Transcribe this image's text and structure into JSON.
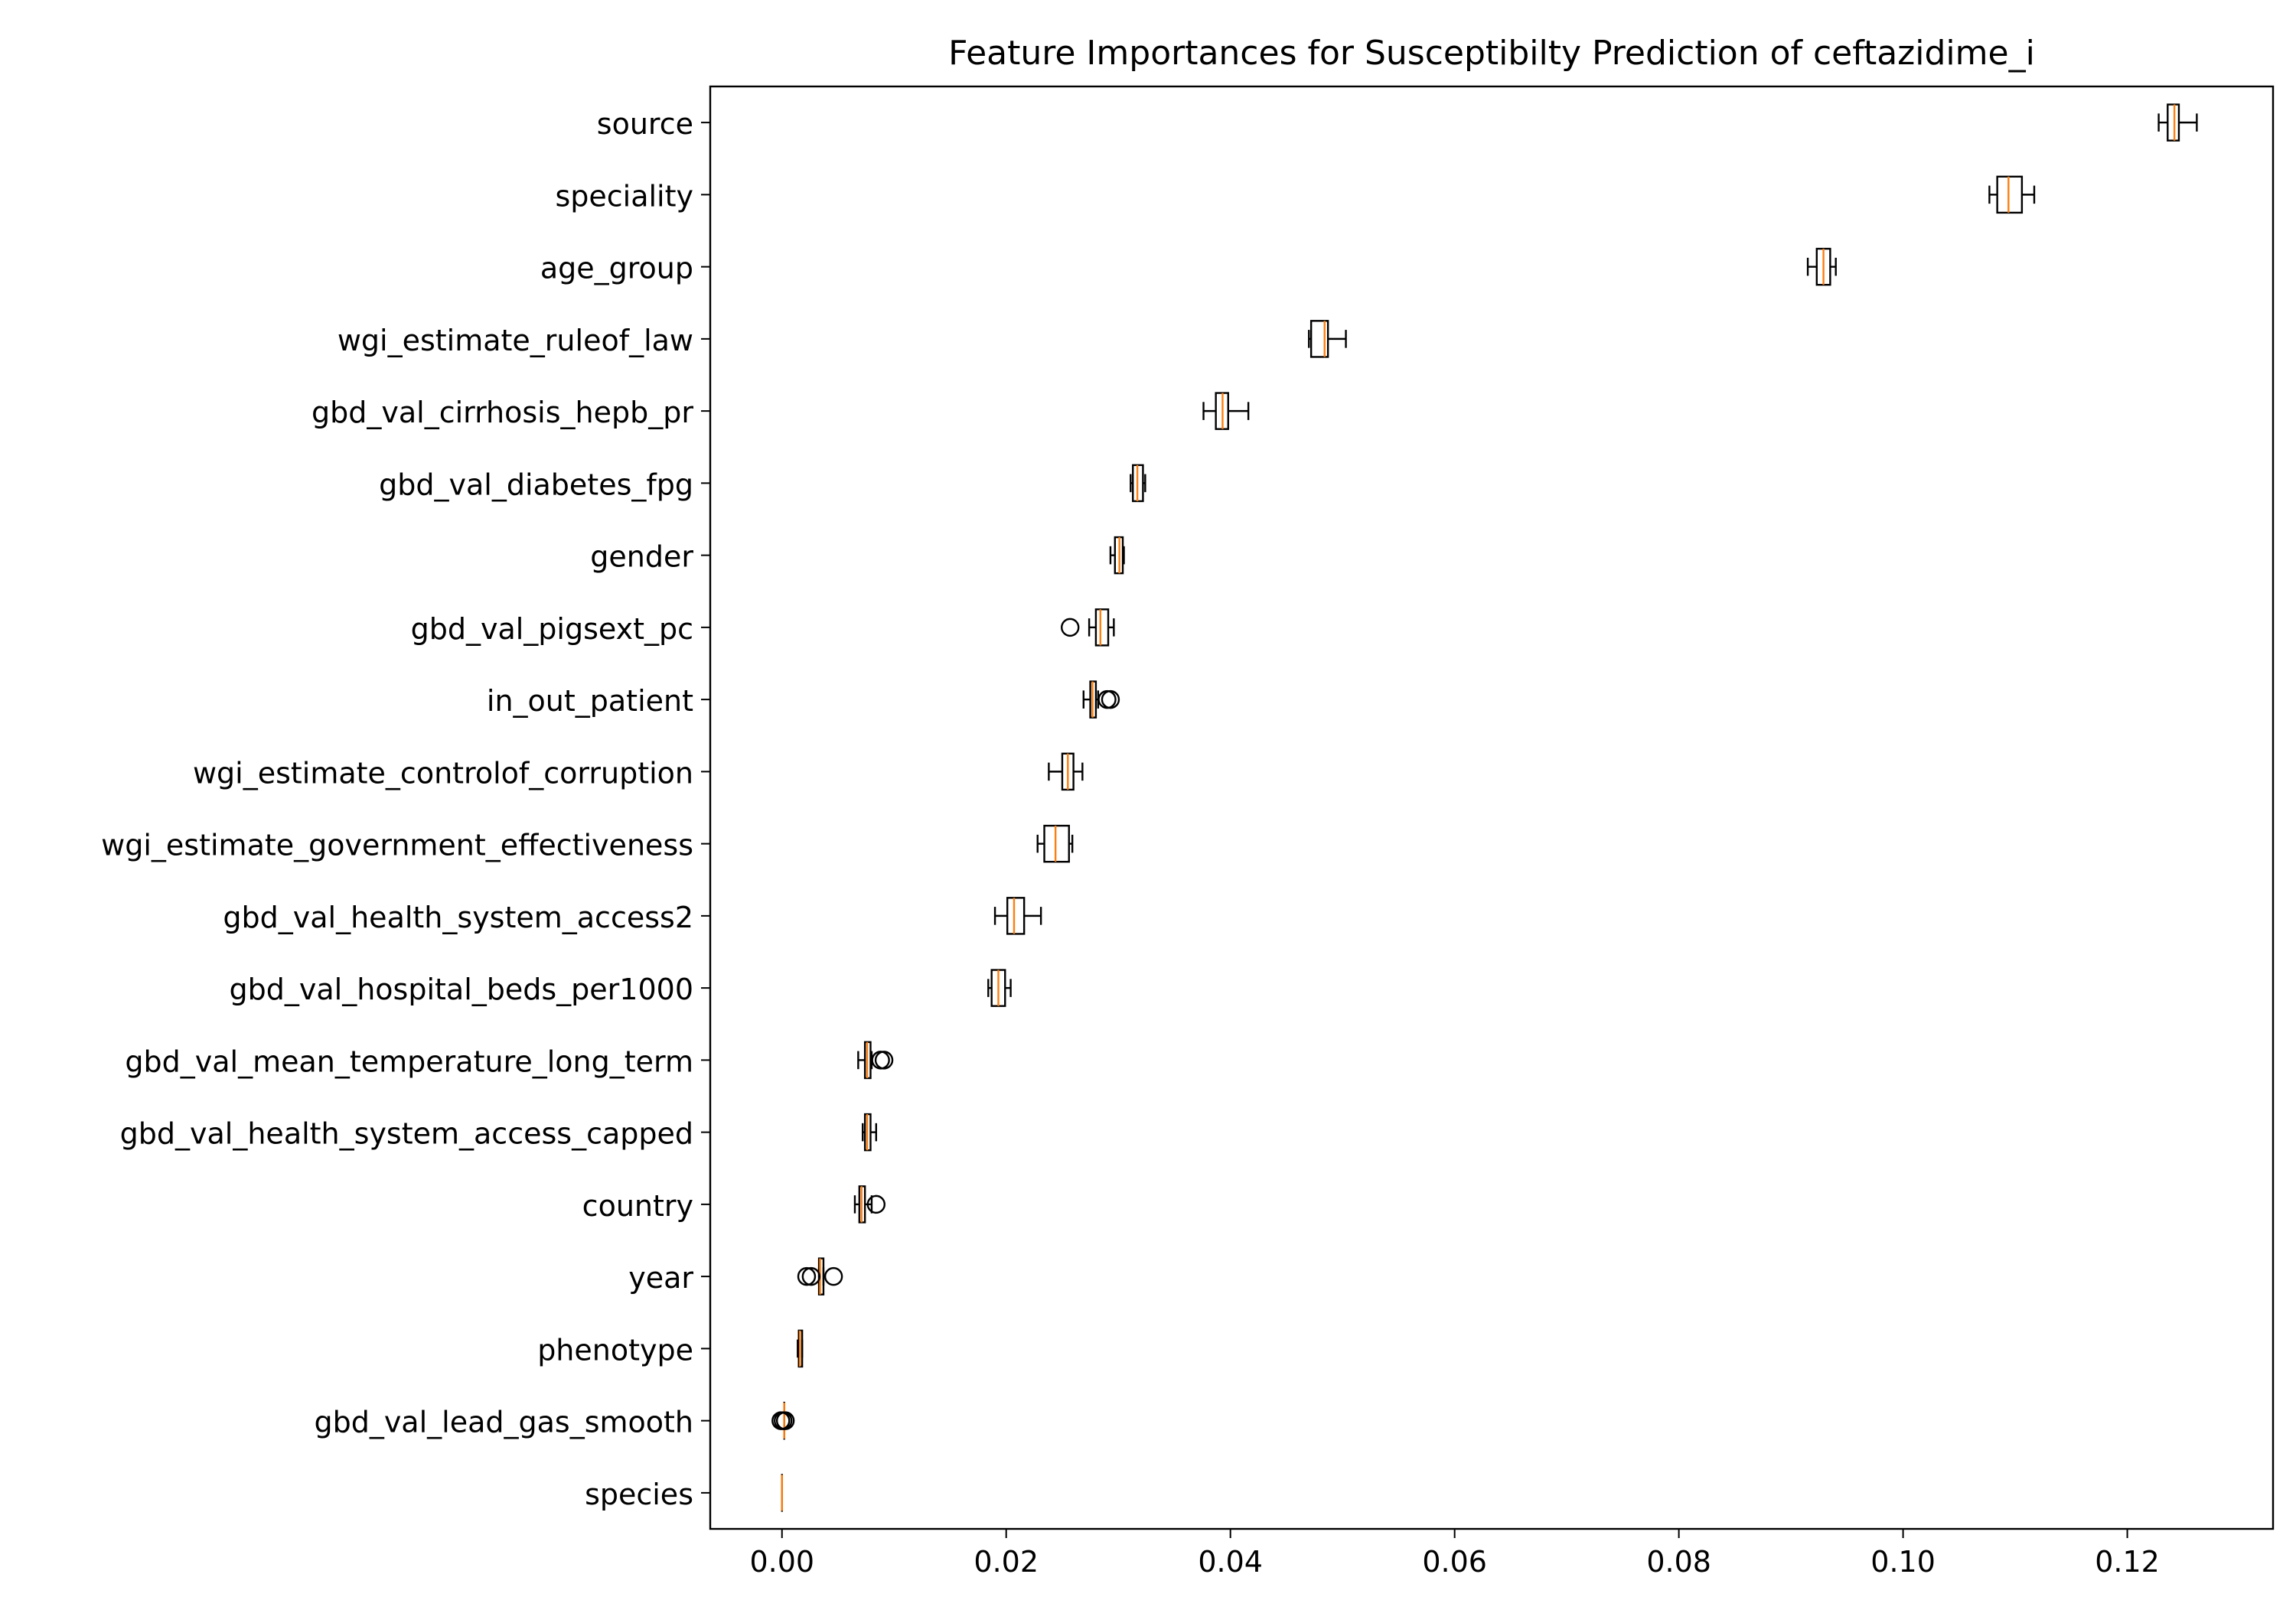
{
  "chart_data": {
    "type": "boxplot",
    "orientation": "horizontal",
    "title": "Feature Importances for Susceptibilty Prediction of ceftazidime_i",
    "xlabel": "",
    "ylabel": "",
    "xlim": [
      -0.0064,
      0.133
    ],
    "xticks": [
      {
        "value": 0.0,
        "label": "0.00"
      },
      {
        "value": 0.02,
        "label": "0.02"
      },
      {
        "value": 0.04,
        "label": "0.04"
      },
      {
        "value": 0.06,
        "label": "0.06"
      },
      {
        "value": 0.08,
        "label": "0.08"
      },
      {
        "value": 0.1,
        "label": "0.10"
      },
      {
        "value": 0.12,
        "label": "0.12"
      }
    ],
    "grid": false,
    "colors": {
      "box": "#000000",
      "median": "#ff7f0e",
      "flier": "#000000"
    },
    "features": [
      {
        "label": "source",
        "whislo": 0.1228,
        "q1": 0.1236,
        "med": 0.1242,
        "q3": 0.1246,
        "whishi": 0.1262,
        "fliers": []
      },
      {
        "label": "speciality",
        "whislo": 0.1077,
        "q1": 0.1084,
        "med": 0.1094,
        "q3": 0.1106,
        "whishi": 0.1117,
        "fliers": []
      },
      {
        "label": "age_group",
        "whislo": 0.0915,
        "q1": 0.0923,
        "med": 0.0929,
        "q3": 0.0935,
        "whishi": 0.094,
        "fliers": []
      },
      {
        "label": "wgi_estimate_ruleof_law",
        "whislo": 0.047,
        "q1": 0.0472,
        "med": 0.0484,
        "q3": 0.0487,
        "whishi": 0.0503,
        "fliers": []
      },
      {
        "label": "gbd_val_cirrhosis_hepb_pr",
        "whislo": 0.0376,
        "q1": 0.0387,
        "med": 0.0393,
        "q3": 0.0398,
        "whishi": 0.0416,
        "fliers": []
      },
      {
        "label": "gbd_val_diabetes_fpg",
        "whislo": 0.0311,
        "q1": 0.0313,
        "med": 0.0317,
        "q3": 0.0322,
        "whishi": 0.0324,
        "fliers": []
      },
      {
        "label": "gender",
        "whislo": 0.0293,
        "q1": 0.0297,
        "med": 0.0301,
        "q3": 0.0304,
        "whishi": 0.0305,
        "fliers": []
      },
      {
        "label": "gbd_val_pigsext_pc",
        "whislo": 0.0274,
        "q1": 0.028,
        "med": 0.0284,
        "q3": 0.0291,
        "whishi": 0.0296,
        "fliers": [
          0.0257
        ]
      },
      {
        "label": "in_out_patient",
        "whislo": 0.0269,
        "q1": 0.0275,
        "med": 0.0277,
        "q3": 0.028,
        "whishi": 0.0282,
        "fliers": [
          0.029,
          0.0293
        ]
      },
      {
        "label": "wgi_estimate_controlof_corruption",
        "whislo": 0.0238,
        "q1": 0.025,
        "med": 0.0255,
        "q3": 0.026,
        "whishi": 0.0268,
        "fliers": []
      },
      {
        "label": "wgi_estimate_government_effectiveness",
        "whislo": 0.0228,
        "q1": 0.0234,
        "med": 0.0244,
        "q3": 0.0256,
        "whishi": 0.0259,
        "fliers": []
      },
      {
        "label": "gbd_val_health_system_access2",
        "whislo": 0.019,
        "q1": 0.0201,
        "med": 0.0207,
        "q3": 0.0216,
        "whishi": 0.0231,
        "fliers": []
      },
      {
        "label": "gbd_val_hospital_beds_per1000",
        "whislo": 0.0184,
        "q1": 0.0187,
        "med": 0.0193,
        "q3": 0.0199,
        "whishi": 0.0204,
        "fliers": []
      },
      {
        "label": "gbd_val_mean_temperature_long_term",
        "whislo": 0.0068,
        "q1": 0.0074,
        "med": 0.0076,
        "q3": 0.0079,
        "whishi": 0.008,
        "fliers": [
          0.0088,
          0.0091
        ]
      },
      {
        "label": "gbd_val_health_system_access_capped",
        "whislo": 0.0072,
        "q1": 0.0074,
        "med": 0.0076,
        "q3": 0.0079,
        "whishi": 0.0084,
        "fliers": []
      },
      {
        "label": "country",
        "whislo": 0.0065,
        "q1": 0.0069,
        "med": 0.0071,
        "q3": 0.0074,
        "whishi": 0.008,
        "fliers": [
          0.0084
        ]
      },
      {
        "label": "year",
        "whislo": 0.0033,
        "q1": 0.0033,
        "med": 0.0034,
        "q3": 0.0037,
        "whishi": 0.0037,
        "fliers": [
          0.0022,
          0.0026,
          0.0046
        ]
      },
      {
        "label": "phenotype",
        "whislo": 0.0014,
        "q1": 0.0015,
        "med": 0.0016,
        "q3": 0.0018,
        "whishi": 0.0018,
        "fliers": []
      },
      {
        "label": "gbd_val_lead_gas_smooth",
        "whislo": 0.0002,
        "q1": 0.0002,
        "med": 0.0002,
        "q3": 0.0002,
        "whishi": 0.0002,
        "fliers": [
          -0.0001,
          0.0001,
          0.0003
        ]
      },
      {
        "label": "species",
        "whislo": 0.0,
        "q1": 0.0,
        "med": 0.0,
        "q3": 0.0,
        "whishi": 0.0,
        "fliers": []
      }
    ]
  }
}
